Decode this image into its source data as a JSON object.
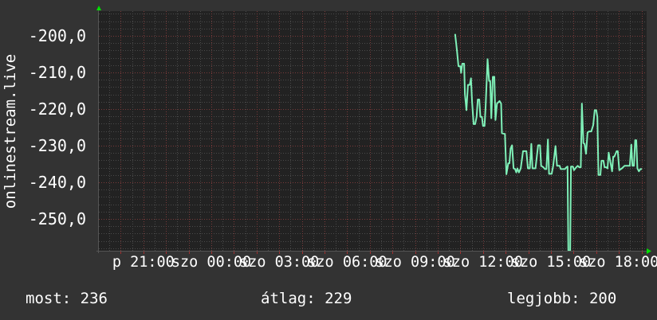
{
  "chart_data": {
    "type": "line",
    "ylabel": "onlinestream.live",
    "y_ticks": [
      "-200,0",
      "-210,0",
      "-220,0",
      "-230,0",
      "-240,0",
      "-250,0"
    ],
    "y_tick_values": [
      -200,
      -210,
      -220,
      -230,
      -240,
      -250
    ],
    "ylim": [
      -258.7,
      -193.5
    ],
    "x_ticks": [
      "p 21:00",
      "szo 00:00",
      "szo 03:00",
      "szo 06:00",
      "szo 09:00",
      "szo 12:00",
      "szo 15:00",
      "szo 18:00"
    ],
    "x_tick_hours": [
      -3,
      0,
      3,
      6,
      9,
      12,
      15,
      18
    ],
    "xlim_hours": [
      -5,
      19.2
    ],
    "grid": true,
    "line_color": "#7ff0b8",
    "series": [
      {
        "points": [
          [
            "10:46",
            -199.5
          ],
          [
            "10:51",
            -204.0
          ],
          [
            "10:55",
            -208.3
          ],
          [
            "11:00",
            -208.3
          ],
          [
            "11:02",
            -210.1
          ],
          [
            "11:05",
            -207.6
          ],
          [
            "11:10",
            -207.6
          ],
          [
            "11:12",
            -215.9
          ],
          [
            "11:16",
            -220.3
          ],
          [
            "11:20",
            -213.4
          ],
          [
            "11:25",
            -213.4
          ],
          [
            "11:28",
            -211.6
          ],
          [
            "11:31",
            -218.1
          ],
          [
            "11:35",
            -224.1
          ],
          [
            "11:39",
            -224.1
          ],
          [
            "11:43",
            -222.1
          ],
          [
            "11:46",
            -217.4
          ],
          [
            "11:50",
            -217.4
          ],
          [
            "11:53",
            -222.1
          ],
          [
            "11:57",
            -222.1
          ],
          [
            "12:00",
            -224.6
          ],
          [
            "12:04",
            -224.6
          ],
          [
            "12:07",
            -219.2
          ],
          [
            "12:12",
            -206.4
          ],
          [
            "12:16",
            -212.3
          ],
          [
            "12:19",
            -212.3
          ],
          [
            "12:22",
            -222.5
          ],
          [
            "12:26",
            -211.2
          ],
          [
            "12:30",
            -211.2
          ],
          [
            "12:33",
            -223.0
          ],
          [
            "12:37",
            -218.5
          ],
          [
            "12:44",
            -217.8
          ],
          [
            "12:48",
            -218.5
          ],
          [
            "12:50",
            -226.6
          ],
          [
            "12:58",
            -226.8
          ],
          [
            "13:02",
            -237.8
          ],
          [
            "13:07",
            -234.8
          ],
          [
            "13:10",
            -234.8
          ],
          [
            "13:13",
            -230.8
          ],
          [
            "13:17",
            -229.9
          ],
          [
            "13:21",
            -236.2
          ],
          [
            "13:25",
            -236.4
          ],
          [
            "13:28",
            -237.3
          ],
          [
            "13:31",
            -236.2
          ],
          [
            "13:35",
            -237.3
          ],
          [
            "13:40",
            -236.2
          ],
          [
            "13:46",
            -231.5
          ],
          [
            "13:55",
            -231.5
          ],
          [
            "13:59",
            -236.2
          ],
          [
            "14:04",
            -236.2
          ],
          [
            "14:08",
            -229.5
          ],
          [
            "14:11",
            -236.2
          ],
          [
            "14:19",
            -236.2
          ],
          [
            "14:26",
            -229.9
          ],
          [
            "14:31",
            -229.9
          ],
          [
            "14:34",
            -235.5
          ],
          [
            "14:40",
            -235.9
          ],
          [
            "14:44",
            -236.4
          ],
          [
            "14:48",
            -236.4
          ],
          [
            "14:52",
            -228.3
          ],
          [
            "14:55",
            -237.7
          ],
          [
            "15:02",
            -237.7
          ],
          [
            "15:06",
            -235.5
          ],
          [
            "15:12",
            -230.1
          ],
          [
            "15:16",
            -235.5
          ],
          [
            "15:23",
            -235.5
          ],
          [
            "15:26",
            -236.4
          ],
          [
            "15:33",
            -236.4
          ],
          [
            "15:37",
            -236.4
          ],
          [
            "15:40",
            -236.0
          ],
          [
            "15:44",
            -235.7
          ],
          [
            "15:46",
            -258.7
          ],
          [
            "15:51",
            -258.7
          ],
          [
            "15:53",
            -235.7
          ],
          [
            "15:58",
            -235.7
          ],
          [
            "16:01",
            -236.7
          ],
          [
            "16:07",
            -235.9
          ],
          [
            "16:11",
            -235.5
          ],
          [
            "16:15",
            -235.9
          ],
          [
            "16:19",
            -235.9
          ],
          [
            "16:22",
            -218.5
          ],
          [
            "16:26",
            -229.3
          ],
          [
            "16:29",
            -229.5
          ],
          [
            "16:33",
            -232.2
          ],
          [
            "16:37",
            -226.4
          ],
          [
            "16:41",
            -226.1
          ],
          [
            "16:47",
            -226.1
          ],
          [
            "16:52",
            -224.4
          ],
          [
            "16:56",
            -220.3
          ],
          [
            "17:00",
            -220.3
          ],
          [
            "17:03",
            -222.2
          ],
          [
            "17:06",
            -238.0
          ],
          [
            "17:11",
            -238.0
          ],
          [
            "17:14",
            -234.1
          ],
          [
            "17:19",
            -234.1
          ],
          [
            "17:22",
            -235.9
          ],
          [
            "17:26",
            -235.9
          ],
          [
            "17:30",
            -236.2
          ],
          [
            "17:33",
            -231.9
          ],
          [
            "17:38",
            -234.8
          ],
          [
            "17:42",
            -237.0
          ],
          [
            "17:45",
            -233.0
          ],
          [
            "17:48",
            -233.0
          ],
          [
            "17:54",
            -231.5
          ],
          [
            "17:57",
            -231.5
          ],
          [
            "18:01",
            -236.7
          ],
          [
            "18:08",
            -236.2
          ],
          [
            "18:15",
            -235.5
          ],
          [
            "18:29",
            -235.5
          ],
          [
            "18:33",
            -229.7
          ],
          [
            "18:36",
            -235.5
          ],
          [
            "18:40",
            -235.5
          ],
          [
            "18:43",
            -228.5
          ],
          [
            "18:46",
            -228.5
          ],
          [
            "18:49",
            -236.2
          ],
          [
            "18:53",
            -237.0
          ],
          [
            "18:57",
            -236.4
          ],
          [
            "19:01",
            -236.4
          ]
        ]
      }
    ]
  },
  "legend": {
    "current": "most: 236",
    "average": "átlag: 229",
    "best": "legjobb: 200"
  }
}
